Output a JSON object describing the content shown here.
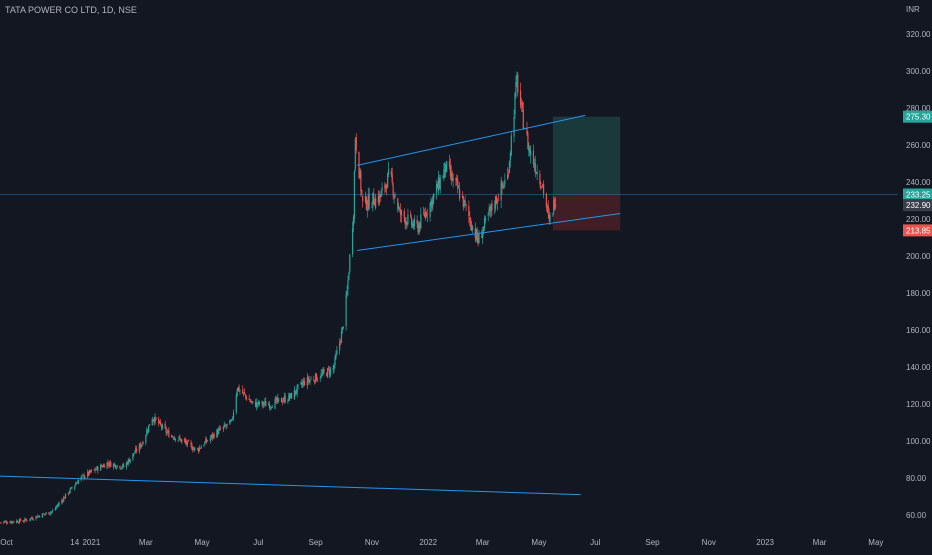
{
  "symbol_title": "TATA POWER CO LTD, 1D, NSE",
  "currency": "INR",
  "colors": {
    "background": "#131722",
    "up": "#26a69a",
    "down": "#ef5350",
    "trendline": "#2196f3",
    "text": "#b2b5be",
    "profit_zone": "#1b3f3e",
    "loss_zone": "#4a2027"
  },
  "chart_data": {
    "type": "candlestick",
    "title": "TATA POWER CO LTD, 1D, NSE",
    "ylabel": "INR",
    "y_ticks": [
      "60.00",
      "80.00",
      "100.00",
      "120.00",
      "140.00",
      "160.00",
      "180.00",
      "200.00",
      "220.00",
      "240.00",
      "260.00",
      "280.00",
      "300.00",
      "320.00"
    ],
    "y_range": [
      54,
      322
    ],
    "x_ticks": [
      "Oct",
      "14",
      "2021",
      "Mar",
      "May",
      "Jul",
      "Sep",
      "Nov",
      "2022",
      "Mar",
      "May",
      "Jul",
      "Sep",
      "Nov",
      "2023",
      "Mar",
      "May"
    ],
    "x_range": [
      "2020-09-24",
      "2023-05-25"
    ],
    "data_end": "2022-05-19",
    "approx_close_path": [
      [
        "2020-09-24",
        56
      ],
      [
        "2020-10-20",
        57
      ],
      [
        "2020-11-20",
        62
      ],
      [
        "2020-12-20",
        80
      ],
      [
        "2021-01-18",
        88
      ],
      [
        "2021-02-05",
        86
      ],
      [
        "2021-02-25",
        99
      ],
      [
        "2021-03-08",
        113
      ],
      [
        "2021-03-25",
        104
      ],
      [
        "2021-04-10",
        100
      ],
      [
        "2021-04-25",
        95
      ],
      [
        "2021-05-15",
        104
      ],
      [
        "2021-06-02",
        110
      ],
      [
        "2021-06-08",
        129
      ],
      [
        "2021-06-25",
        120
      ],
      [
        "2021-07-15",
        120
      ],
      [
        "2021-08-05",
        124
      ],
      [
        "2021-08-20",
        132
      ],
      [
        "2021-09-05",
        135
      ],
      [
        "2021-09-20",
        139
      ],
      [
        "2021-09-30",
        160
      ],
      [
        "2021-10-05",
        180
      ],
      [
        "2021-10-12",
        225
      ],
      [
        "2021-10-14",
        265
      ],
      [
        "2021-10-22",
        228
      ],
      [
        "2021-11-10",
        232
      ],
      [
        "2021-11-20",
        244
      ],
      [
        "2021-12-01",
        223
      ],
      [
        "2021-12-20",
        215
      ],
      [
        "2022-01-05",
        230
      ],
      [
        "2022-01-20",
        248
      ],
      [
        "2022-02-05",
        233
      ],
      [
        "2022-02-24",
        208
      ],
      [
        "2022-03-10",
        225
      ],
      [
        "2022-03-28",
        243
      ],
      [
        "2022-04-07",
        295
      ],
      [
        "2022-04-12",
        278
      ],
      [
        "2022-04-20",
        258
      ],
      [
        "2022-05-05",
        238
      ],
      [
        "2022-05-12",
        218
      ],
      [
        "2022-05-19",
        232
      ]
    ],
    "last_price": "233.25",
    "second_price": "232.90",
    "target_price": "275.30",
    "stop_price": "213.85",
    "channel_upper": [
      [
        "2021-10-16",
        249
      ],
      [
        "2022-06-20",
        276
      ]
    ],
    "channel_lower": [
      [
        "2021-10-16",
        203
      ],
      [
        "2022-07-28",
        223
      ]
    ],
    "long_trendline": [
      [
        "2020-09-24",
        81
      ],
      [
        "2022-06-15",
        71
      ]
    ],
    "position": {
      "start": "2022-05-16",
      "end": "2022-07-28",
      "entry": 233.25,
      "target": 275.3,
      "stop": 213.85
    }
  }
}
